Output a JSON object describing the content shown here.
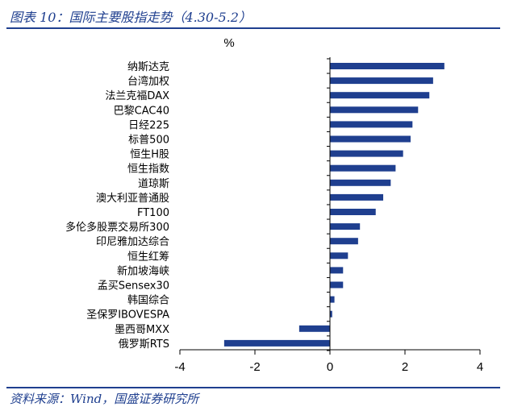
{
  "header": {
    "title": "图表 10：国际主要股指走势（4.30-5.2）"
  },
  "footer": {
    "source": "资料来源：Wind，国盛证券研究所"
  },
  "chart_data": {
    "type": "bar",
    "orientation": "horizontal",
    "unit": "%",
    "categories": [
      "纳斯达克",
      "台湾加权",
      "法兰克福DAX",
      "巴黎CAC40",
      "日经225",
      "标普500",
      "恒生H股",
      "恒生指数",
      "道琼斯",
      "澳大利亚普通股",
      "FT100",
      "多伦多股票交易所300",
      "印尼雅加达综合",
      "恒生红筹",
      "新加坡海峡",
      "孟买Sensex30",
      "韩国综合",
      "圣保罗IBOVESPA",
      "墨西哥MXX",
      "俄罗斯RTS"
    ],
    "values": [
      3.05,
      2.75,
      2.65,
      2.35,
      2.2,
      2.15,
      1.95,
      1.75,
      1.62,
      1.42,
      1.22,
      0.8,
      0.75,
      0.48,
      0.35,
      0.35,
      0.12,
      0.06,
      -0.82,
      -2.82
    ],
    "xlim": [
      -4,
      4
    ],
    "xticks": [
      -4,
      -2,
      0,
      2,
      4
    ],
    "bar_color": "#1f3f8f"
  }
}
